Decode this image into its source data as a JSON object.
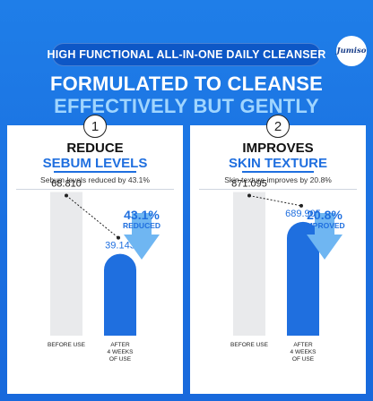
{
  "header": {
    "pill": "HIGH FUNCTIONAL ALL-IN-ONE DAILY CLEANSER",
    "logo": "Jumiso",
    "headline_1": "FORMULATED TO CLEANSE",
    "headline_2": "EFFECTIVELY BUT GENTLY"
  },
  "colors": {
    "brand_blue": "#1f7ee8",
    "accent_blue": "#1f6fdf",
    "light_blue": "#9fd5ff",
    "before_bar": "#e9eaec"
  },
  "panels": [
    {
      "number": "1",
      "title_1": "REDUCE",
      "title_2": "SEBUM LEVELS",
      "subtitle": "Sebum levels reduced by 43.1%",
      "change_pct": "43.1%",
      "change_word": "REDUCED",
      "arrow": "down-arrow-icon"
    },
    {
      "number": "2",
      "title_1": "IMPROVES",
      "title_2": "SKIN TEXTURE",
      "subtitle": "Skin texture improves by 20.8%",
      "change_pct": "20.8%",
      "change_word": "IMPROVED",
      "arrow": "up-arrow-icon"
    }
  ],
  "chart_data": [
    {
      "type": "bar",
      "title": "REDUCE SEBUM LEVELS",
      "categories": [
        "BEFORE USE",
        "AFTER 4 WEEKS OF USE"
      ],
      "values": [
        68.81,
        39.143
      ],
      "value_labels": [
        "68.810",
        "39.143"
      ],
      "x_labels": [
        [
          "BEFORE USE"
        ],
        [
          "AFTER",
          "4 WEEKS",
          "OF USE"
        ]
      ],
      "ylim": [
        0,
        75
      ]
    },
    {
      "type": "bar",
      "title": "IMPROVES SKIN TEXTURE",
      "categories": [
        "BEFORE USE",
        "AFTER 4 WEEKS OF USE"
      ],
      "values": [
        871.095,
        689.905
      ],
      "value_labels": [
        "871.095",
        "689.905"
      ],
      "x_labels": [
        [
          "BEFORE USE"
        ],
        [
          "AFTER",
          "4 WEEKS",
          "OF USE"
        ]
      ],
      "ylim": [
        0,
        950
      ]
    }
  ]
}
